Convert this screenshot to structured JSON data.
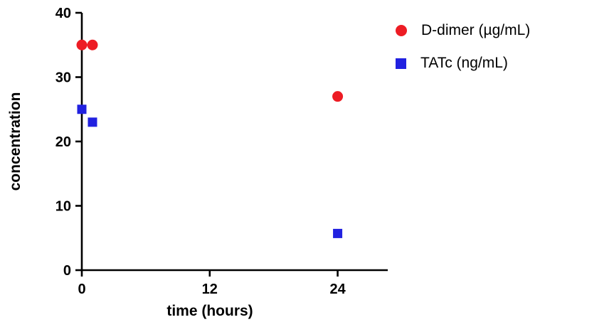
{
  "chart_data": {
    "type": "scatter",
    "title": "",
    "xlabel": "time (hours)",
    "ylabel": "concentration",
    "xlim": [
      0,
      28.7
    ],
    "ylim": [
      0,
      40
    ],
    "xticks": [
      0,
      12,
      24
    ],
    "yticks": [
      0,
      10,
      20,
      30,
      40
    ],
    "grid": false,
    "legend_position": "top-right",
    "axis_color": "#000000",
    "series": [
      {
        "name": "D-dimer (µg/mL)",
        "marker": "circle",
        "color": "#ed1c24",
        "points": [
          {
            "x": 0,
            "y": 35
          },
          {
            "x": 1,
            "y": 35
          },
          {
            "x": 24,
            "y": 27
          }
        ]
      },
      {
        "name": "TATc (ng/mL)",
        "marker": "square",
        "color": "#2121e0",
        "points": [
          {
            "x": 0,
            "y": 25
          },
          {
            "x": 1,
            "y": 23
          },
          {
            "x": 24,
            "y": 5.7
          }
        ]
      }
    ]
  }
}
